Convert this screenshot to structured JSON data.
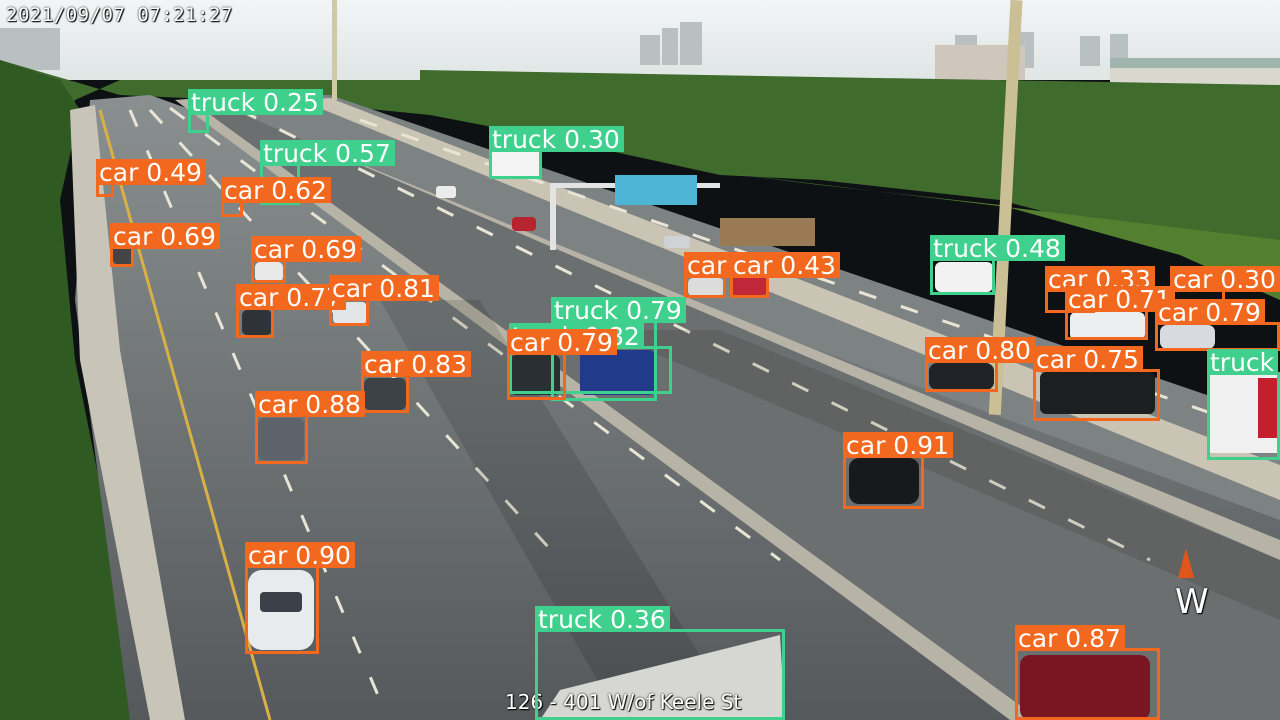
{
  "overlay": {
    "timestamp": "2021/09/07   07:21:27",
    "camera_label": "126 - 401 W/of Keele St",
    "direction": "W"
  },
  "colors": {
    "car": "#f2681f",
    "truck": "#3ed08c"
  },
  "detections": [
    {
      "cls": "truck",
      "label": "truck 0.25"
    },
    {
      "cls": "truck",
      "label": "truck 0.30"
    },
    {
      "cls": "truck",
      "label": "truck 0.57"
    },
    {
      "cls": "car",
      "label": "car 0.49"
    },
    {
      "cls": "car",
      "label": "car 0.62"
    },
    {
      "cls": "car",
      "label": "car 0.69"
    },
    {
      "cls": "car",
      "label": "car 0.69"
    },
    {
      "cls": "car",
      "label": "car 0.77"
    },
    {
      "cls": "car",
      "label": "car 0.81"
    },
    {
      "cls": "car",
      "label": "car 0.43"
    },
    {
      "cls": "car",
      "label": "car"
    },
    {
      "cls": "truck",
      "label": "truck 0.48"
    },
    {
      "cls": "car",
      "label": "car 0.33"
    },
    {
      "cls": "car",
      "label": "car 0.30"
    },
    {
      "cls": "car",
      "label": "car 0.71"
    },
    {
      "cls": "car",
      "label": "car 0.79"
    },
    {
      "cls": "truck",
      "label": "truck 0.79"
    },
    {
      "cls": "truck",
      "label": "truck 0.82"
    },
    {
      "cls": "car",
      "label": "car 0.79"
    },
    {
      "cls": "car",
      "label": "car 0.83"
    },
    {
      "cls": "car",
      "label": "car 0.88"
    },
    {
      "cls": "car",
      "label": "car 0.80"
    },
    {
      "cls": "car",
      "label": "car 0.75"
    },
    {
      "cls": "truck",
      "label": "truck"
    },
    {
      "cls": "car",
      "label": "car 0.91"
    },
    {
      "cls": "car",
      "label": "car 0.90"
    },
    {
      "cls": "truck",
      "label": "truck 0.36"
    },
    {
      "cls": "car",
      "label": "car 0.87"
    }
  ]
}
